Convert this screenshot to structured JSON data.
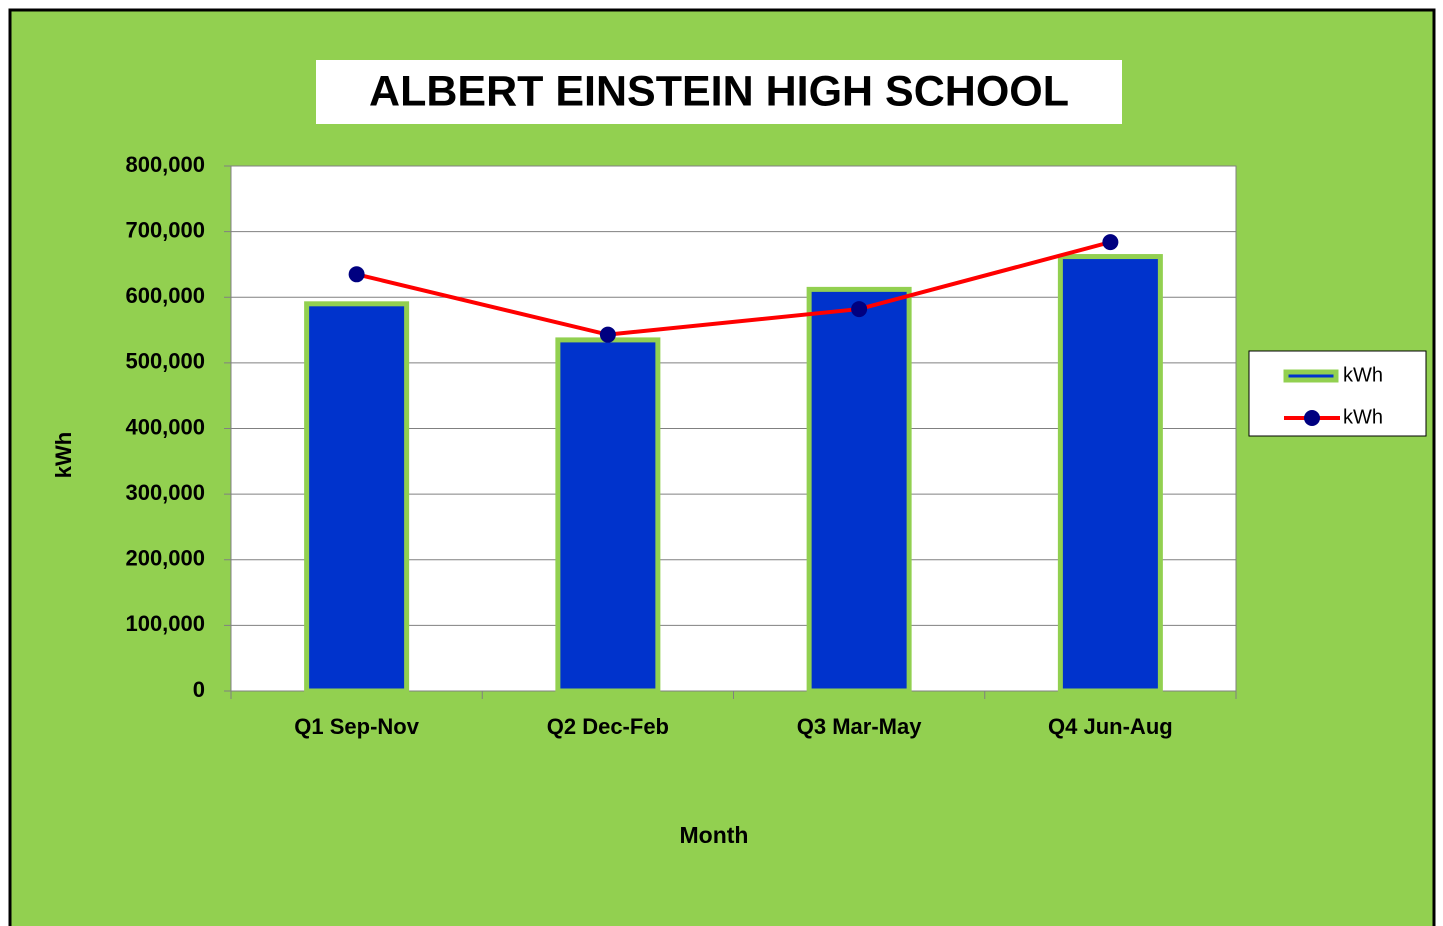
{
  "chart_data": {
    "type": "combo",
    "title": "ALBERT EINSTEIN HIGH SCHOOL",
    "x_label": "Month",
    "y_label": "kWh",
    "categories": [
      "Q1 Sep-Nov",
      "Q2 Dec-Feb",
      "Q3 Mar-May",
      "Q4 Jun-Aug"
    ],
    "series": [
      {
        "name": "kWh",
        "type": "bar",
        "color": "#0033cc",
        "edge_color": "#92d050",
        "values": [
          590000,
          535000,
          612000,
          662000
        ]
      },
      {
        "name": "kWh",
        "type": "line",
        "color": "#ff0000",
        "marker_color": "#000080",
        "values": [
          635000,
          543000,
          582000,
          684000
        ]
      }
    ],
    "ylim": [
      0,
      800000
    ],
    "yticks": [
      0,
      {
        "value": 100000,
        "label": "100,000"
      },
      {
        "value": 200000,
        "label": "200,000"
      },
      {
        "value": 300000,
        "label": "300,000"
      },
      {
        "value": 400000,
        "label": "400,000"
      },
      {
        "value": 500000,
        "label": "500,000"
      },
      {
        "value": 600000,
        "label": "600,000"
      },
      {
        "value": 700000,
        "label": "700,000"
      },
      {
        "value": 800000,
        "label": "800,000"
      }
    ],
    "grid": true,
    "legend": "right"
  }
}
